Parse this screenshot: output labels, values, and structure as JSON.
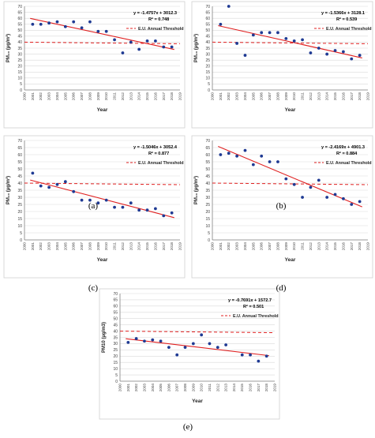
{
  "chart_data": [
    {
      "type": "scatter",
      "caption": "(a)",
      "ylabel": "PM₁₀ (μg/m³)",
      "xlabel": "Year",
      "ylim": [
        0,
        70
      ],
      "yticks": [
        0,
        5,
        10,
        15,
        20,
        25,
        30,
        35,
        40,
        45,
        50,
        55,
        60,
        65,
        70
      ],
      "xlim": [
        2000,
        2019
      ],
      "xticks": [
        2000,
        2001,
        2002,
        2003,
        2004,
        2005,
        2006,
        2007,
        2008,
        2009,
        2010,
        2011,
        2012,
        2013,
        2014,
        2015,
        2016,
        2017,
        2018,
        2019
      ],
      "equation": "y = -1.4757x + 3012.3",
      "r2": "R² = 0.748",
      "trend": {
        "slope": -1.4757,
        "intercept": 3012.3
      },
      "threshold": {
        "label": "E.U. Annual Threshold",
        "y": 40
      },
      "points": [
        [
          2001,
          55
        ],
        [
          2002,
          55
        ],
        [
          2003,
          56
        ],
        [
          2004,
          57
        ],
        [
          2005,
          53
        ],
        [
          2006,
          57
        ],
        [
          2007,
          52
        ],
        [
          2008,
          57
        ],
        [
          2009,
          49
        ],
        [
          2010,
          49
        ],
        [
          2011,
          42
        ],
        [
          2012,
          31
        ],
        [
          2013,
          40
        ],
        [
          2014,
          34
        ],
        [
          2015,
          41
        ],
        [
          2016,
          41
        ],
        [
          2017,
          36
        ],
        [
          2018,
          36
        ]
      ]
    },
    {
      "type": "scatter",
      "caption": "(b)",
      "ylabel": "PM₁₀ (μg/m³)",
      "xlabel": "Year",
      "ylim": [
        0,
        70
      ],
      "yticks": [
        0,
        5,
        10,
        15,
        20,
        25,
        30,
        35,
        40,
        45,
        50,
        55,
        60,
        65,
        70
      ],
      "xlim": [
        2000,
        2019
      ],
      "xticks": [
        2000,
        2001,
        2002,
        2003,
        2004,
        2005,
        2006,
        2007,
        2008,
        2009,
        2010,
        2011,
        2012,
        2013,
        2014,
        2015,
        2016,
        2017,
        2018,
        2019
      ],
      "equation": "y = -1.5366x + 3128.1",
      "r2": "R² = 0.539",
      "trend": {
        "slope": -1.5366,
        "intercept": 3128.1
      },
      "threshold": {
        "label": "E.U. Annual Threshold",
        "y": 40
      },
      "points": [
        [
          2001,
          55
        ],
        [
          2002,
          70
        ],
        [
          2003,
          39
        ],
        [
          2004,
          29
        ],
        [
          2005,
          46
        ],
        [
          2006,
          48
        ],
        [
          2007,
          48
        ],
        [
          2008,
          48
        ],
        [
          2009,
          43
        ],
        [
          2010,
          41
        ],
        [
          2011,
          42
        ],
        [
          2012,
          31
        ],
        [
          2013,
          35
        ],
        [
          2014,
          30
        ],
        [
          2015,
          33
        ],
        [
          2016,
          32
        ],
        [
          2017,
          26
        ],
        [
          2018,
          29
        ]
      ]
    },
    {
      "type": "scatter",
      "caption": "(c)",
      "ylabel": "PM₁₀ (μg/m³)",
      "xlabel": "Year",
      "ylim": [
        0,
        70
      ],
      "yticks": [
        0,
        5,
        10,
        15,
        20,
        25,
        30,
        35,
        40,
        45,
        50,
        55,
        60,
        65,
        70
      ],
      "xlim": [
        2000,
        2019
      ],
      "xticks": [
        2000,
        2001,
        2002,
        2003,
        2004,
        2005,
        2006,
        2007,
        2008,
        2009,
        2010,
        2011,
        2012,
        2013,
        2014,
        2015,
        2016,
        2017,
        2018,
        2019
      ],
      "equation": "y = -1.5046x + 3052.4",
      "r2": "R² = 0.877",
      "trend": {
        "slope": -1.5046,
        "intercept": 3052.4
      },
      "threshold": {
        "label": "E.U. Annual Threshold",
        "y": 40
      },
      "points": [
        [
          2001,
          47
        ],
        [
          2002,
          38
        ],
        [
          2003,
          37
        ],
        [
          2004,
          39
        ],
        [
          2005,
          41
        ],
        [
          2006,
          34
        ],
        [
          2007,
          28
        ],
        [
          2008,
          28
        ],
        [
          2009,
          26
        ],
        [
          2010,
          28
        ],
        [
          2011,
          23
        ],
        [
          2012,
          23
        ],
        [
          2013,
          26
        ],
        [
          2014,
          21
        ],
        [
          2015,
          21
        ],
        [
          2016,
          22
        ],
        [
          2017,
          17
        ],
        [
          2018,
          19
        ]
      ]
    },
    {
      "type": "scatter",
      "caption": "(d)",
      "ylabel": "PM₁₀ (μg/m³)",
      "xlabel": "Year",
      "ylim": [
        0,
        70
      ],
      "yticks": [
        0,
        5,
        10,
        15,
        20,
        25,
        30,
        35,
        40,
        45,
        50,
        55,
        60,
        65,
        70
      ],
      "xlim": [
        2000,
        2019
      ],
      "xticks": [
        2000,
        2001,
        2002,
        2003,
        2004,
        2005,
        2006,
        2007,
        2008,
        2009,
        2010,
        2011,
        2012,
        2013,
        2014,
        2015,
        2016,
        2017,
        2018,
        2019
      ],
      "equation": "y = -2.4169x + 4901.3",
      "r2": "R² = 0.884",
      "trend": {
        "slope": -2.4169,
        "intercept": 4901.3
      },
      "threshold": {
        "label": "E.U. Annual Threshold",
        "y": 40
      },
      "points": [
        [
          2001,
          60
        ],
        [
          2002,
          61
        ],
        [
          2003,
          59
        ],
        [
          2004,
          63
        ],
        [
          2005,
          53
        ],
        [
          2006,
          59
        ],
        [
          2007,
          55
        ],
        [
          2008,
          55
        ],
        [
          2009,
          43
        ],
        [
          2010,
          39
        ],
        [
          2011,
          30
        ],
        [
          2012,
          37
        ],
        [
          2013,
          42
        ],
        [
          2014,
          30
        ],
        [
          2015,
          32
        ],
        [
          2016,
          29
        ],
        [
          2017,
          25
        ],
        [
          2018,
          27
        ]
      ]
    },
    {
      "type": "scatter",
      "caption": "(e)",
      "ylabel": "PM10 (μg/m3)",
      "xlabel": "Year",
      "ylim": [
        0,
        70
      ],
      "yticks": [
        0,
        5,
        10,
        15,
        20,
        25,
        30,
        35,
        40,
        45,
        50,
        55,
        60,
        65,
        70
      ],
      "xlim": [
        2000,
        2019
      ],
      "xticks": [
        2000,
        2001,
        2002,
        2003,
        2004,
        2005,
        2006,
        2007,
        2008,
        2009,
        2010,
        2011,
        2012,
        2013,
        2014,
        2015,
        2016,
        2017,
        2018,
        2019
      ],
      "equation": "y = -0.7691x + 1572.7",
      "r2": "R² = 0.501",
      "trend": {
        "slope": -0.7691,
        "intercept": 1572.7
      },
      "threshold": {
        "label": "E.U. Annual Threshold",
        "y": 40
      },
      "points": [
        [
          2001,
          31
        ],
        [
          2002,
          34
        ],
        [
          2003,
          32
        ],
        [
          2004,
          33
        ],
        [
          2005,
          32
        ],
        [
          2006,
          27
        ],
        [
          2007,
          21
        ],
        [
          2008,
          27
        ],
        [
          2009,
          30
        ],
        [
          2010,
          37
        ],
        [
          2011,
          30
        ],
        [
          2012,
          27
        ],
        [
          2013,
          29
        ],
        [
          2015,
          21
        ],
        [
          2016,
          21
        ],
        [
          2017,
          16
        ],
        [
          2018,
          20
        ]
      ]
    }
  ],
  "colors": {
    "point": "#1f3a93",
    "trend": "#e02020",
    "threshold": "#e02020",
    "grid": "#d9d9d9",
    "axis": "#808080",
    "panel_border": "#cfcfcf"
  }
}
